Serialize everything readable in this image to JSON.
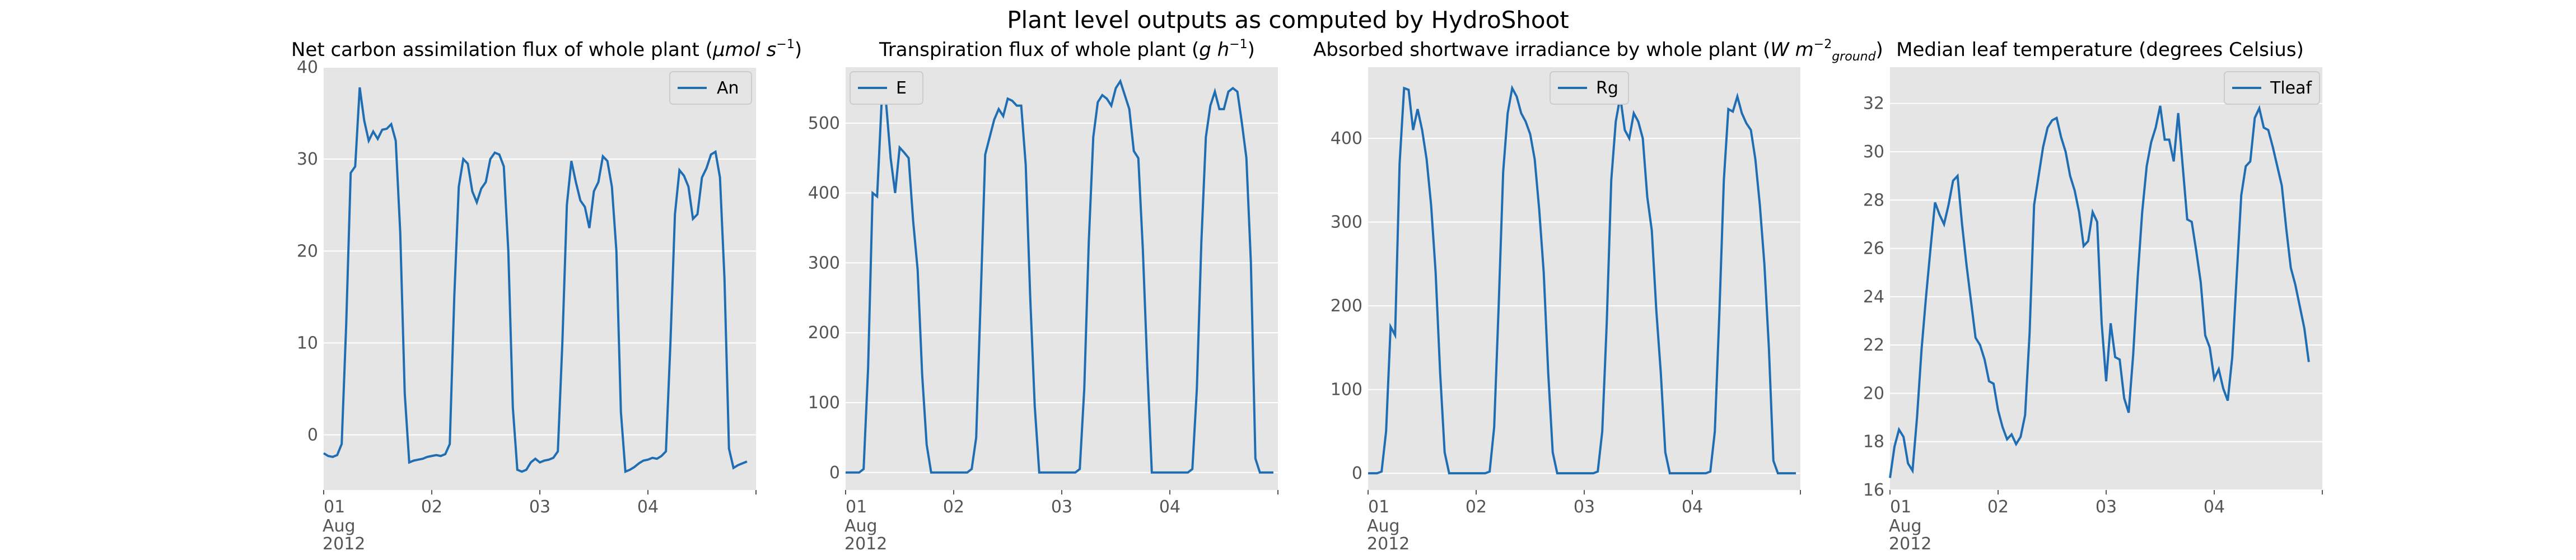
{
  "figure": {
    "suptitle": "Plant level outputs as computed by HydroShoot"
  },
  "colors": {
    "axes_bg": "#e5e5e5",
    "grid": "#ffffff",
    "line": "#1f6eb4",
    "tick_text": "#555555"
  },
  "chart_data": [
    {
      "type": "line",
      "title": "Net carbon assimilation flux of whole plant",
      "title_unit": "μmol s",
      "title_unit_sup": "−1",
      "title_unit_sub": "",
      "xlabel": "",
      "ylabel": "",
      "x_start": "2012-08-01 00:00",
      "x_step_hours": 1,
      "xlim_days": [
        "01",
        "05"
      ],
      "x_tick_labels": [
        "01",
        "02",
        "03",
        "04"
      ],
      "x_first_tick_extra": [
        "Aug",
        "2012"
      ],
      "ylim": [
        -6,
        40
      ],
      "yticks": [
        0,
        10,
        20,
        30,
        40
      ],
      "grid": true,
      "legend": "top-right",
      "series": [
        {
          "name": "An",
          "values": [
            -2,
            -2.3,
            -2.4,
            -2.2,
            -1.0,
            12,
            28.5,
            29.2,
            37.8,
            34.2,
            32,
            33,
            32.2,
            33.2,
            33.3,
            33.8,
            32,
            22,
            4.5,
            -3,
            -2.8,
            -2.7,
            -2.6,
            -2.4,
            -2.3,
            -2.2,
            -2.3,
            -2.1,
            -1.0,
            15,
            27,
            30,
            29.5,
            26.5,
            25.3,
            26.8,
            27.5,
            30,
            30.7,
            30.5,
            29.2,
            20,
            3,
            -3.8,
            -4.0,
            -3.8,
            -3.0,
            -2.6,
            -3.0,
            -2.8,
            -2.7,
            -2.5,
            -1.8,
            10,
            25,
            29.8,
            27.5,
            25.5,
            24.8,
            22.5,
            26.5,
            27.5,
            30.3,
            29.8,
            27,
            20,
            2.5,
            -4.0,
            -3.8,
            -3.5,
            -3.1,
            -2.8,
            -2.7,
            -2.5,
            -2.6,
            -2.3,
            -1.8,
            10,
            24,
            28.8,
            28.2,
            27,
            23.5,
            24,
            28,
            29,
            30.5,
            30.8,
            28,
            17,
            -1.5,
            -3.6,
            -3.3,
            -3.1,
            -2.9
          ]
        }
      ]
    },
    {
      "type": "line",
      "title": "Transpiration flux of whole plant",
      "title_unit": "g h",
      "title_unit_sup": "−1",
      "title_unit_sub": "",
      "xlabel": "",
      "ylabel": "",
      "x_start": "2012-08-01 00:00",
      "x_step_hours": 1,
      "xlim_days": [
        "01",
        "05"
      ],
      "x_tick_labels": [
        "01",
        "02",
        "03",
        "04"
      ],
      "x_first_tick_extra": [
        "Aug",
        "2012"
      ],
      "ylim": [
        -25,
        580
      ],
      "yticks": [
        0,
        100,
        200,
        300,
        400,
        500
      ],
      "grid": true,
      "legend": "top-left",
      "series": [
        {
          "name": "E",
          "values": [
            0,
            0,
            0,
            0,
            5,
            150,
            400,
            395,
            530,
            528,
            450,
            400,
            465,
            458,
            450,
            360,
            290,
            140,
            40,
            0,
            0,
            0,
            0,
            0,
            0,
            0,
            0,
            0,
            5,
            50,
            250,
            455,
            480,
            505,
            520,
            510,
            535,
            532,
            525,
            525,
            440,
            250,
            95,
            0,
            0,
            0,
            0,
            0,
            0,
            0,
            0,
            0,
            5,
            120,
            330,
            480,
            530,
            540,
            535,
            525,
            550,
            560,
            540,
            520,
            460,
            450,
            320,
            150,
            0,
            0,
            0,
            0,
            0,
            0,
            0,
            0,
            0,
            5,
            120,
            330,
            480,
            525,
            545,
            520,
            520,
            545,
            550,
            545,
            500,
            450,
            300,
            20,
            0,
            0,
            0,
            0
          ]
        }
      ]
    },
    {
      "type": "line",
      "title": "Absorbed shortwave irradiance by whole plant",
      "title_unit": "W m",
      "title_unit_sup": "−2",
      "title_unit_sub": "ground",
      "xlabel": "",
      "ylabel": "",
      "x_start": "2012-08-01 00:00",
      "x_step_hours": 1,
      "xlim_days": [
        "01",
        "05"
      ],
      "x_tick_labels": [
        "01",
        "02",
        "03",
        "04"
      ],
      "x_first_tick_extra": [
        "Aug",
        "2012"
      ],
      "ylim": [
        -20,
        485
      ],
      "yticks": [
        0,
        100,
        200,
        300,
        400
      ],
      "grid": true,
      "legend": "top-center",
      "series": [
        {
          "name": "Rg",
          "values": [
            0,
            0,
            0,
            2,
            50,
            175,
            165,
            370,
            460,
            458,
            410,
            435,
            410,
            375,
            320,
            240,
            120,
            25,
            0,
            0,
            0,
            0,
            0,
            0,
            0,
            0,
            0,
            2,
            55,
            200,
            360,
            430,
            460,
            450,
            430,
            420,
            405,
            375,
            315,
            240,
            120,
            25,
            0,
            0,
            0,
            0,
            0,
            0,
            0,
            0,
            0,
            2,
            50,
            180,
            350,
            420,
            450,
            410,
            400,
            430,
            420,
            400,
            330,
            290,
            195,
            120,
            25,
            0,
            0,
            0,
            0,
            0,
            0,
            0,
            0,
            0,
            2,
            50,
            190,
            350,
            435,
            432,
            450,
            430,
            418,
            410,
            375,
            320,
            250,
            150,
            15,
            0,
            0,
            0,
            0,
            0
          ]
        }
      ]
    },
    {
      "type": "line",
      "title": "Median leaf temperature (degrees Celsius)",
      "title_unit": "",
      "title_unit_sup": "",
      "title_unit_sub": "",
      "xlabel": "",
      "ylabel": "",
      "x_start": "2012-08-01 00:00",
      "x_step_hours": 1,
      "xlim_days": [
        "01",
        "05"
      ],
      "x_tick_labels": [
        "01",
        "02",
        "03",
        "04"
      ],
      "x_first_tick_extra": [
        "Aug",
        "2012"
      ],
      "ylim": [
        16,
        33.5
      ],
      "yticks": [
        16,
        18,
        20,
        22,
        24,
        26,
        28,
        30,
        32
      ],
      "grid": true,
      "legend": "top-right",
      "series": [
        {
          "name": "Tleaf",
          "values": [
            16.5,
            17.8,
            18.5,
            18.2,
            17.1,
            16.8,
            19,
            21.8,
            24,
            26,
            27.9,
            27.4,
            27,
            27.8,
            28.8,
            29,
            27,
            25.3,
            23.8,
            22.3,
            22,
            21.4,
            20.5,
            20.4,
            19.3,
            18.6,
            18.1,
            18.3,
            17.9,
            18.2,
            19.1,
            22.5,
            27.8,
            29,
            30.2,
            31,
            31.3,
            31.4,
            30.6,
            30,
            29,
            28.4,
            27.5,
            26.1,
            26.3,
            27.5,
            27.1,
            22.9,
            20.5,
            22.9,
            21.5,
            21.4,
            19.8,
            19.2,
            21.6,
            24.8,
            27.5,
            29.4,
            30.4,
            31,
            31.9,
            30.5,
            30.5,
            29.6,
            31.6,
            29.4,
            27.2,
            27.1,
            25.9,
            24.6,
            22.4,
            21.9,
            20.6,
            21,
            20.2,
            19.7,
            21.5,
            24.9,
            28.2,
            29.4,
            29.6,
            31.4,
            31.8,
            31,
            30.9,
            30.2,
            29.4,
            28.6,
            26.8,
            25.2,
            24.5,
            23.6,
            22.7,
            21.3
          ]
        }
      ]
    }
  ]
}
